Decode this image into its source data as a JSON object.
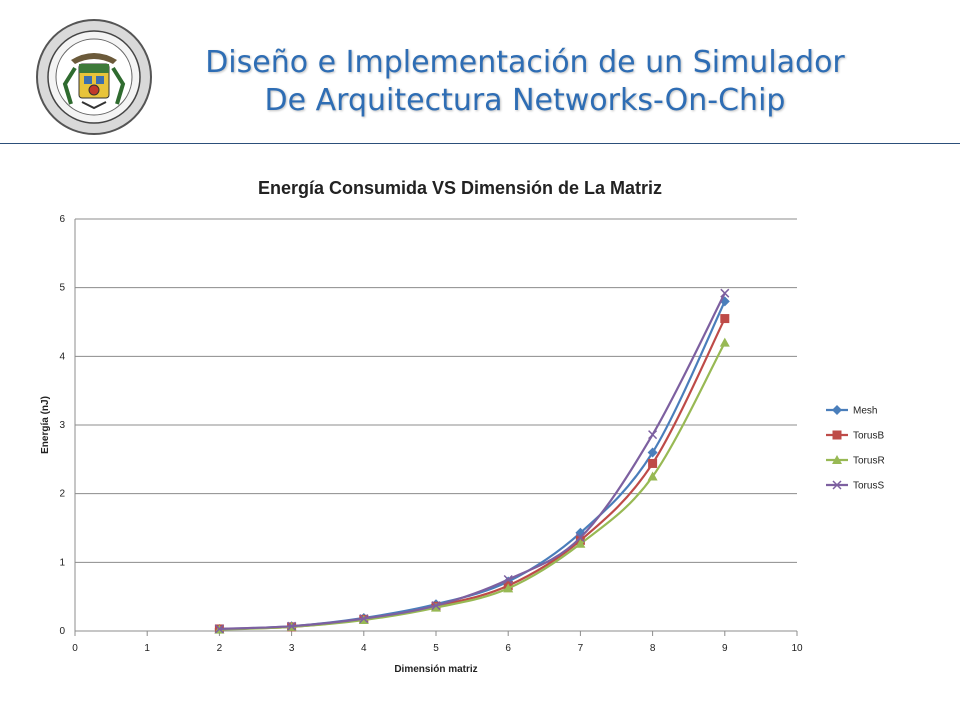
{
  "header": {
    "title_line1": "Diseño e Implementación de un Simulador",
    "title_line2": "De Arquitectura Networks-On-Chip",
    "logo": {
      "ring_text_top": "ESCUELA POLITECNICA DEL EJERCITO",
      "ring_text_bottom": "ECUADOR"
    }
  },
  "colors": {
    "title": "#2e6db4",
    "divider": "#2c4f7a"
  },
  "chart_data": {
    "type": "line",
    "title": "Energía Consumida VS Dimensión de La Matriz",
    "xlabel": "Dimensión matriz",
    "ylabel": "Energía (nJ)",
    "xlim": [
      0,
      10
    ],
    "ylim": [
      0,
      6
    ],
    "xticks": [
      0,
      1,
      2,
      3,
      4,
      5,
      6,
      7,
      8,
      9,
      10
    ],
    "yticks": [
      0,
      1,
      2,
      3,
      4,
      5,
      6
    ],
    "grid": "horizontal",
    "legend_position": "right",
    "series": [
      {
        "name": "Mesh",
        "color": "#4a7ebb",
        "marker": "diamond",
        "x": [
          2,
          3,
          4,
          5,
          6,
          7,
          8,
          9
        ],
        "y": [
          0.03,
          0.07,
          0.19,
          0.39,
          0.72,
          1.43,
          2.6,
          4.8
        ]
      },
      {
        "name": "TorusB",
        "color": "#be4b48",
        "marker": "square",
        "x": [
          2,
          3,
          4,
          5,
          6,
          7,
          8,
          9
        ],
        "y": [
          0.03,
          0.06,
          0.17,
          0.36,
          0.66,
          1.32,
          2.44,
          4.55
        ]
      },
      {
        "name": "TorusR",
        "color": "#98b954",
        "marker": "triangle",
        "x": [
          2,
          3,
          4,
          5,
          6,
          7,
          8,
          9
        ],
        "y": [
          0.02,
          0.06,
          0.16,
          0.34,
          0.62,
          1.27,
          2.25,
          4.2
        ]
      },
      {
        "name": "TorusS",
        "color": "#7d60a0",
        "marker": "x",
        "x": [
          2,
          3,
          4,
          5,
          6,
          7,
          8,
          9
        ],
        "y": [
          0.03,
          0.07,
          0.18,
          0.37,
          0.75,
          1.36,
          2.86,
          4.92
        ]
      }
    ]
  }
}
